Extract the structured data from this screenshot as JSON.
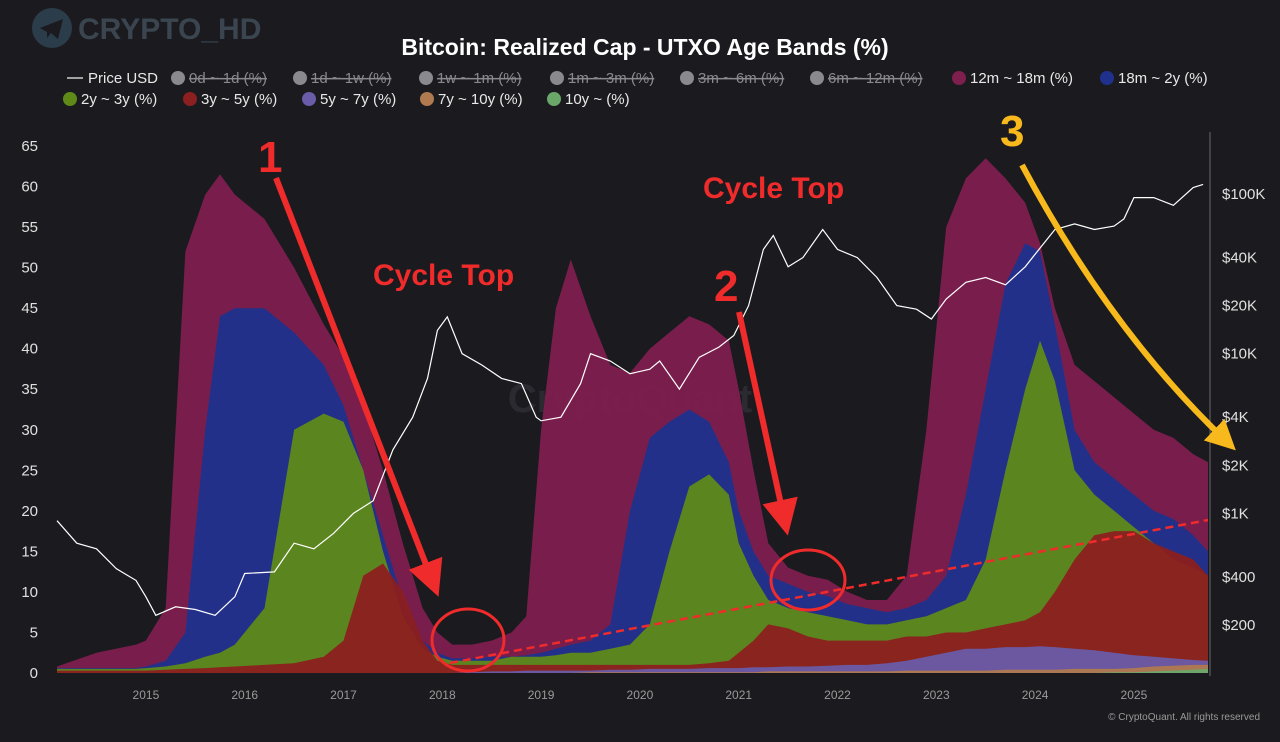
{
  "watermark": {
    "text": "CRYPTO_HD",
    "icon": "telegram-icon"
  },
  "background_watermark": "CryptoQuant",
  "copyright": "© CryptoQuant. All rights reserved",
  "colors": {
    "background": "#1b1b1f",
    "band_12m_18m": "#7e1f4f",
    "band_18m_2y": "#1f318c",
    "band_2y_3y": "#5f8a18",
    "band_3y_5y": "#8c1f1f",
    "band_5y_7y": "#6a5ca8",
    "band_7y_10y": "#b07a50",
    "band_10y_plus": "#6aa86a",
    "price": "#ffffff",
    "annotation_red": "#ef2b2b",
    "annotation_yellow": "#f7b91b"
  },
  "chart_data": {
    "type": "area",
    "title": "Bitcoin: Realized Cap - UTXO Age Bands (%)",
    "legend": [
      {
        "label": "Price USD",
        "visible": true,
        "marker": "line"
      },
      {
        "label": "0d ~ 1d (%)",
        "visible": false
      },
      {
        "label": "1d ~ 1w (%)",
        "visible": false
      },
      {
        "label": "1w ~ 1m (%)",
        "visible": false
      },
      {
        "label": "1m ~ 3m (%)",
        "visible": false
      },
      {
        "label": "3m ~ 6m (%)",
        "visible": false
      },
      {
        "label": "6m ~ 12m (%)",
        "visible": false
      },
      {
        "label": "12m ~ 18m (%)",
        "visible": true
      },
      {
        "label": "18m ~ 2y (%)",
        "visible": true
      },
      {
        "label": "2y ~ 3y (%)",
        "visible": true
      },
      {
        "label": "3y ~ 5y (%)",
        "visible": true
      },
      {
        "label": "5y ~ 7y (%)",
        "visible": true
      },
      {
        "label": "7y ~ 10y (%)",
        "visible": true
      },
      {
        "label": "10y ~ (%)",
        "visible": true
      }
    ],
    "legend_position": "top",
    "grid": false,
    "x_range": [
      2014.1,
      2025.75
    ],
    "x_ticks": [
      "2015",
      "2016",
      "2017",
      "2018",
      "2019",
      "2020",
      "2021",
      "2022",
      "2023",
      "2024",
      "2025"
    ],
    "y_left_range": [
      0,
      65
    ],
    "y_left_ticks": [
      "0",
      "5",
      "10",
      "15",
      "20",
      "25",
      "30",
      "35",
      "40",
      "45",
      "50",
      "55",
      "60",
      "65"
    ],
    "y_right_scale": "log",
    "y_right_range": [
      100,
      200000
    ],
    "y_right_ticks": [
      {
        "label": "$200",
        "value": 200
      },
      {
        "label": "$400",
        "value": 400
      },
      {
        "label": "$1K",
        "value": 1000
      },
      {
        "label": "$2K",
        "value": 2000
      },
      {
        "label": "$4K",
        "value": 4000
      },
      {
        "label": "$10K",
        "value": 10000
      },
      {
        "label": "$20K",
        "value": 20000
      },
      {
        "label": "$40K",
        "value": 40000
      },
      {
        "label": "$100K",
        "value": 100000
      }
    ],
    "x": [
      2014.1,
      2014.5,
      2014.9,
      2015.0,
      2015.2,
      2015.4,
      2015.6,
      2015.75,
      2015.9,
      2016.2,
      2016.5,
      2016.8,
      2017.0,
      2017.2,
      2017.4,
      2017.6,
      2017.8,
      2017.95,
      2018.1,
      2018.3,
      2018.5,
      2018.7,
      2018.85,
      2019.0,
      2019.15,
      2019.3,
      2019.5,
      2019.7,
      2019.9,
      2020.1,
      2020.3,
      2020.5,
      2020.7,
      2020.9,
      2021.0,
      2021.15,
      2021.3,
      2021.5,
      2021.7,
      2021.9,
      2022.1,
      2022.3,
      2022.5,
      2022.7,
      2022.9,
      2023.1,
      2023.3,
      2023.5,
      2023.7,
      2023.9,
      2024.05,
      2024.2,
      2024.4,
      2024.6,
      2024.8,
      2025.0,
      2025.2,
      2025.4,
      2025.6,
      2025.75
    ],
    "series": [
      {
        "name": "3y ~ 5y (%)",
        "values": [
          0.3,
          0.3,
          0.3,
          0.3,
          0.4,
          0.5,
          0.6,
          0.7,
          0.8,
          1.0,
          1.2,
          2.0,
          4.0,
          12.0,
          13.5,
          10.0,
          4.0,
          1.5,
          1.0,
          1.0,
          1.0,
          1.0,
          1.0,
          1.0,
          1.0,
          1.0,
          1.0,
          1.0,
          1.0,
          1.0,
          1.0,
          1.0,
          1.2,
          1.5,
          2.5,
          4.0,
          6.0,
          5.5,
          4.5,
          4.0,
          4.0,
          4.0,
          4.0,
          4.5,
          4.5,
          5.0,
          5.0,
          5.5,
          6.0,
          6.5,
          7.5,
          10.0,
          14.0,
          17.0,
          17.5,
          17.5,
          16.0,
          15.0,
          14.0,
          12.0
        ]
      },
      {
        "name": "2y ~ 3y (%)",
        "values": [
          0.5,
          0.5,
          0.5,
          0.6,
          0.8,
          1.2,
          2.0,
          2.5,
          3.5,
          8.0,
          30.0,
          32.0,
          31.0,
          25.0,
          15.0,
          7.0,
          3.0,
          2.0,
          1.5,
          1.5,
          1.5,
          2.0,
          2.0,
          2.0,
          2.2,
          2.5,
          2.5,
          3.0,
          3.5,
          6.0,
          15.0,
          23.0,
          24.5,
          22.0,
          16.0,
          12.0,
          9.0,
          8.0,
          7.5,
          7.0,
          6.5,
          6.0,
          6.0,
          6.5,
          7.0,
          8.0,
          9.0,
          14.0,
          25.0,
          35.0,
          41.0,
          36.0,
          25.0,
          22.0,
          20.0,
          18.0,
          16.0,
          14.0,
          13.0,
          12.0
        ]
      },
      {
        "name": "18m ~ 2y (%)",
        "values": [
          0.6,
          0.6,
          0.6,
          0.8,
          1.5,
          5.0,
          30.0,
          44.0,
          45.0,
          45.0,
          42.0,
          38.0,
          33.0,
          25.0,
          17.0,
          9.0,
          4.0,
          2.5,
          1.8,
          1.8,
          2.0,
          2.0,
          2.2,
          2.5,
          3.0,
          3.5,
          4.0,
          6.0,
          20.0,
          29.0,
          31.0,
          32.5,
          31.0,
          26.0,
          20.0,
          15.0,
          12.0,
          11.0,
          10.0,
          9.5,
          8.5,
          8.0,
          7.5,
          8.0,
          9.0,
          12.0,
          22.0,
          35.0,
          48.0,
          53.0,
          52.0,
          43.0,
          30.0,
          26.0,
          24.0,
          22.0,
          20.0,
          19.0,
          17.0,
          15.0
        ]
      },
      {
        "name": "12m ~ 18m (%)",
        "values": [
          0.8,
          2.5,
          3.5,
          4.0,
          8.0,
          52.0,
          59.0,
          61.5,
          59.0,
          56.0,
          50.0,
          43.0,
          39.0,
          33.0,
          25.0,
          16.0,
          8.0,
          5.0,
          3.5,
          3.5,
          4.0,
          5.0,
          7.0,
          30.0,
          45.0,
          51.0,
          44.0,
          38.0,
          37.0,
          40.0,
          42.0,
          44.0,
          43.0,
          41.0,
          35.0,
          25.0,
          16.0,
          13.0,
          12.0,
          11.5,
          10.0,
          9.0,
          9.0,
          12.0,
          30.0,
          55.0,
          61.0,
          63.5,
          61.0,
          58.0,
          53.0,
          45.0,
          38.0,
          36.0,
          34.0,
          32.0,
          30.0,
          29.0,
          27.0,
          26.0
        ]
      },
      {
        "name": "5y ~ 7y (%)",
        "values": [
          0,
          0,
          0,
          0,
          0,
          0,
          0,
          0,
          0,
          0,
          0,
          0,
          0,
          0,
          0,
          0,
          0,
          0,
          0,
          0.1,
          0.2,
          0.2,
          0.3,
          0.3,
          0.3,
          0.3,
          0.3,
          0.4,
          0.4,
          0.5,
          0.5,
          0.5,
          0.6,
          0.6,
          0.6,
          0.7,
          0.7,
          0.8,
          0.8,
          0.9,
          1.0,
          1.0,
          1.2,
          1.5,
          2.0,
          2.5,
          3.0,
          3.0,
          3.2,
          3.2,
          3.3,
          3.2,
          3.0,
          2.8,
          2.5,
          2.2,
          2.0,
          1.8,
          1.6,
          1.5
        ]
      },
      {
        "name": "7y ~ 10y (%)",
        "values": [
          0,
          0,
          0,
          0,
          0,
          0,
          0,
          0,
          0,
          0,
          0,
          0,
          0,
          0,
          0,
          0,
          0,
          0,
          0,
          0,
          0,
          0,
          0,
          0,
          0,
          0,
          0.1,
          0.1,
          0.1,
          0.1,
          0.1,
          0.1,
          0.1,
          0.1,
          0.1,
          0.1,
          0.2,
          0.2,
          0.2,
          0.2,
          0.2,
          0.2,
          0.2,
          0.3,
          0.3,
          0.3,
          0.3,
          0.3,
          0.4,
          0.4,
          0.4,
          0.4,
          0.5,
          0.5,
          0.5,
          0.6,
          0.8,
          0.9,
          1.0,
          1.0
        ]
      },
      {
        "name": "10y ~ (%)",
        "values": [
          0,
          0,
          0,
          0,
          0,
          0,
          0,
          0,
          0,
          0,
          0,
          0,
          0,
          0,
          0,
          0,
          0,
          0,
          0,
          0,
          0,
          0,
          0,
          0,
          0,
          0,
          0,
          0,
          0,
          0,
          0,
          0,
          0,
          0,
          0,
          0,
          0,
          0,
          0,
          0,
          0,
          0,
          0,
          0,
          0,
          0,
          0,
          0,
          0,
          0,
          0,
          0,
          0,
          0,
          0.1,
          0.1,
          0.2,
          0.3,
          0.4,
          0.5
        ]
      },
      {
        "name": "Price USD",
        "axis": "right",
        "x": [
          2014.1,
          2014.3,
          2014.5,
          2014.7,
          2014.9,
          2015.0,
          2015.1,
          2015.3,
          2015.5,
          2015.7,
          2015.9,
          2016.0,
          2016.3,
          2016.5,
          2016.7,
          2016.9,
          2017.1,
          2017.3,
          2017.5,
          2017.7,
          2017.85,
          2017.95,
          2018.05,
          2018.2,
          2018.4,
          2018.6,
          2018.8,
          2018.95,
          2019.0,
          2019.2,
          2019.4,
          2019.5,
          2019.7,
          2019.9,
          2020.1,
          2020.2,
          2020.4,
          2020.6,
          2020.8,
          2020.95,
          2021.1,
          2021.25,
          2021.35,
          2021.5,
          2021.65,
          2021.85,
          2022.0,
          2022.2,
          2022.4,
          2022.6,
          2022.8,
          2022.95,
          2023.1,
          2023.3,
          2023.5,
          2023.7,
          2023.9,
          2024.0,
          2024.2,
          2024.4,
          2024.6,
          2024.8,
          2024.9,
          2025.0,
          2025.2,
          2025.4,
          2025.6,
          2025.7
        ],
        "values": [
          900,
          650,
          600,
          450,
          380,
          300,
          230,
          260,
          250,
          230,
          300,
          420,
          430,
          650,
          600,
          750,
          1000,
          1200,
          2500,
          4000,
          7000,
          14000,
          17000,
          10000,
          8500,
          7000,
          6500,
          4000,
          3800,
          4000,
          6500,
          10000,
          9000,
          7500,
          8000,
          9000,
          6000,
          9500,
          11000,
          13000,
          20000,
          45000,
          55000,
          35000,
          40000,
          60000,
          45000,
          40000,
          30000,
          20000,
          19000,
          16500,
          22000,
          28000,
          30000,
          27000,
          35000,
          42000,
          60000,
          65000,
          60000,
          63000,
          70000,
          95000,
          95000,
          85000,
          110000,
          115000
        ]
      }
    ]
  },
  "annotations": {
    "cycle_top_1": "Cycle Top",
    "cycle_top_2": "Cycle Top",
    "num_1": "1",
    "num_2": "2",
    "num_3": "3"
  }
}
